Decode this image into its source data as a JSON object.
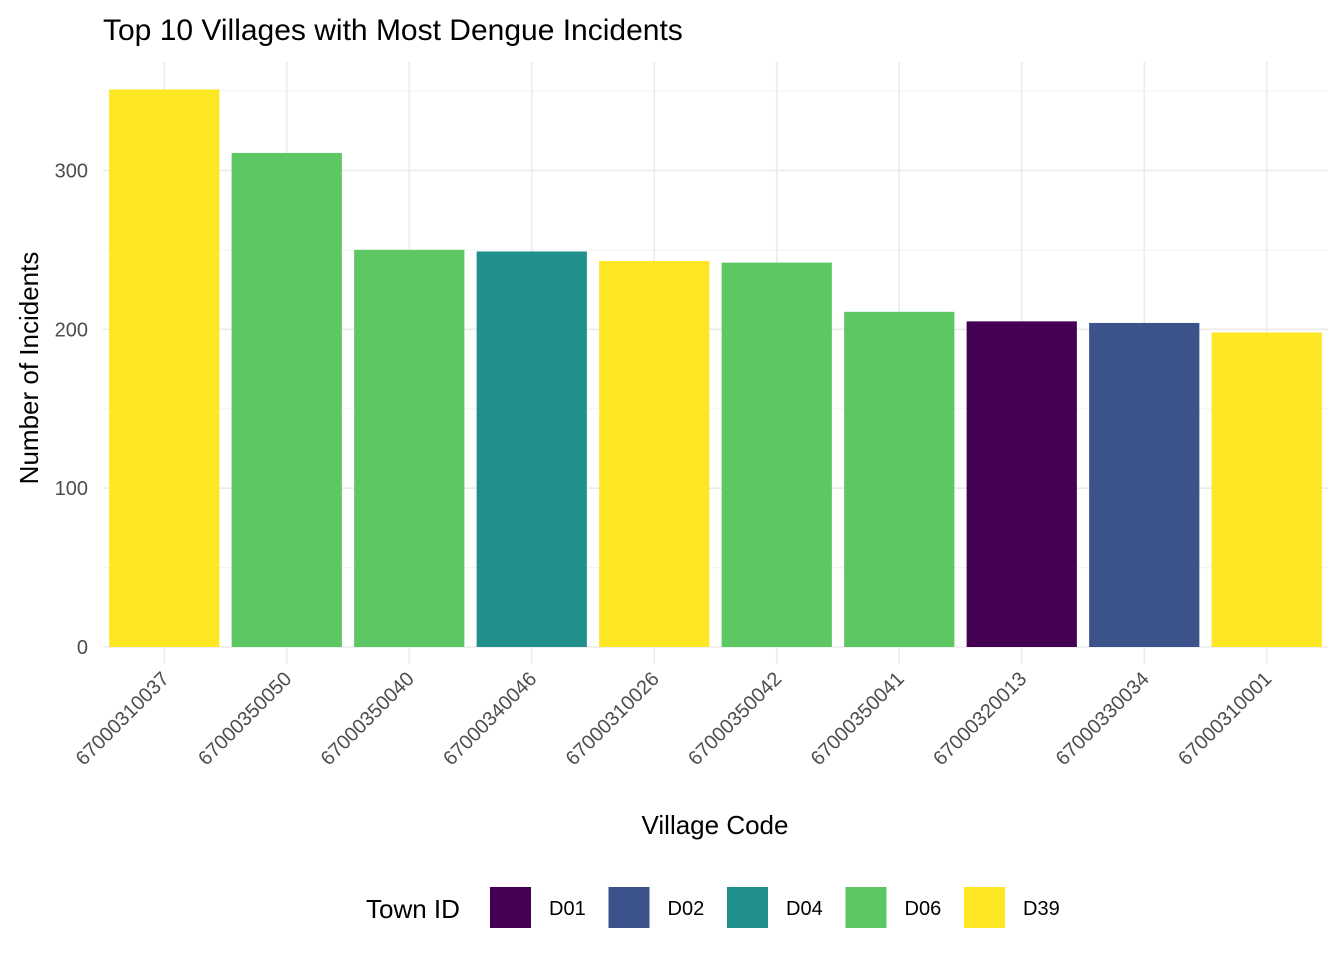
{
  "chart_data": {
    "type": "bar",
    "title": "Top 10 Villages with Most Dengue Incidents",
    "xlabel": "Village Code",
    "ylabel": "Number of Incidents",
    "ylim": [
      0,
      360
    ],
    "yticks": [
      0,
      100,
      200,
      300
    ],
    "grid": true,
    "legend_position": "bottom",
    "legend_title": "Town ID",
    "categories": [
      "67000310037",
      "67000350050",
      "67000350040",
      "67000340046",
      "67000310026",
      "67000350042",
      "67000350041",
      "67000320013",
      "67000330034",
      "67000310001"
    ],
    "values": [
      351,
      311,
      250,
      249,
      243,
      242,
      211,
      205,
      204,
      198
    ],
    "group": [
      "D39",
      "D06",
      "D06",
      "D04",
      "D39",
      "D06",
      "D06",
      "D01",
      "D02",
      "D39"
    ],
    "legend": [
      {
        "name": "D01",
        "color": "#440154"
      },
      {
        "name": "D02",
        "color": "#3B528B"
      },
      {
        "name": "D04",
        "color": "#21908C"
      },
      {
        "name": "D06",
        "color": "#5DC863"
      },
      {
        "name": "D39",
        "color": "#FDE725"
      }
    ]
  }
}
